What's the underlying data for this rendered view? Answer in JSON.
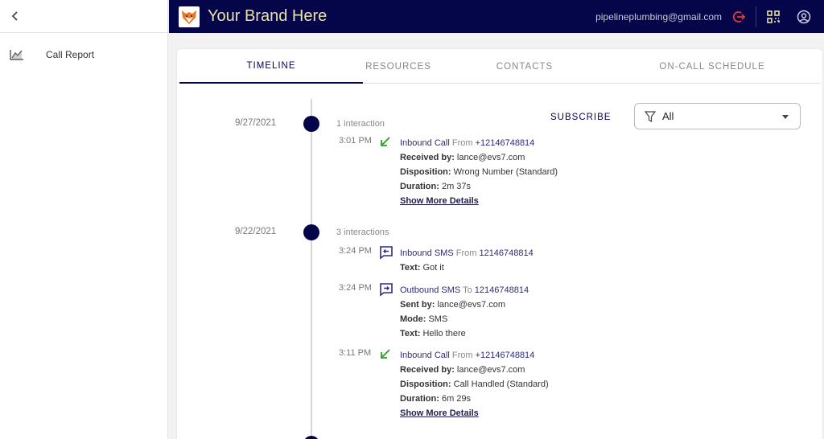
{
  "sidebar": {
    "items": [
      {
        "label": "Call Report",
        "icon": "chart-line-icon"
      }
    ]
  },
  "header": {
    "brand": "Your Brand Here",
    "email": "pipelineplumbing@gmail.com",
    "colors": {
      "bar": "#05054a",
      "brand_text": "#e8e3a8",
      "logout": "#e53935"
    }
  },
  "tabs": [
    "TIMELINE",
    "RESOURCES",
    "CONTACTS",
    "ON-CALL SCHEDULE"
  ],
  "subscribe_label": "SUBSCRIBE",
  "filter": {
    "value": "All"
  },
  "groups": [
    {
      "date": "9/27/2021",
      "count": "1 interaction",
      "events": [
        {
          "time": "3:01 PM",
          "type": "Inbound Call",
          "dir": "From",
          "number": "+12146748814",
          "lines": [
            {
              "label": "Received by:",
              "value": " lance@evs7.com"
            },
            {
              "label": "Disposition:",
              "value": " Wrong Number (Standard)"
            },
            {
              "label": "Duration:",
              "value": " 2m 37s"
            }
          ],
          "more": "Show More Details"
        }
      ]
    },
    {
      "date": "9/22/2021",
      "count": "3 interactions",
      "events": [
        {
          "time": "3:24 PM",
          "type": "Inbound SMS",
          "dir": "From",
          "number": "12146748814",
          "lines": [
            {
              "label": "Text:",
              "value": " Got it"
            }
          ]
        },
        {
          "time": "3:24 PM",
          "type": "Outbound SMS",
          "dir": "To",
          "number": "12146748814",
          "lines": [
            {
              "label": "Sent by:",
              "value": " lance@evs7.com"
            },
            {
              "label": "Mode:",
              "value": " SMS"
            },
            {
              "label": "Text:",
              "value": " Hello there"
            }
          ]
        },
        {
          "time": "3:11 PM",
          "type": "Inbound Call",
          "dir": "From",
          "number": "+12146748814",
          "lines": [
            {
              "label": "Received by:",
              "value": " lance@evs7.com"
            },
            {
              "label": "Disposition:",
              "value": " Call Handled (Standard)"
            },
            {
              "label": "Duration:",
              "value": " 6m 29s"
            }
          ],
          "more": "Show More Details"
        }
      ]
    }
  ]
}
